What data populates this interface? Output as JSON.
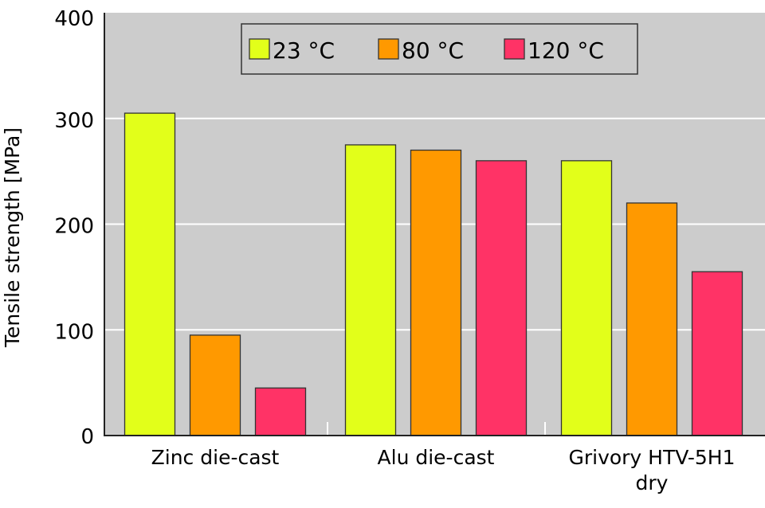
{
  "chart_data": {
    "type": "bar",
    "title": "",
    "xlabel": "",
    "ylabel": "Tensile strength  [MPa]",
    "ylim": [
      0,
      400
    ],
    "yticks": [
      0,
      100,
      200,
      300,
      400
    ],
    "grid": true,
    "legend_position": "top-right",
    "categories": [
      "Zinc die-cast",
      "Alu die-cast",
      "Grivory HTV-5H1 dry"
    ],
    "category_lines": [
      [
        "Zinc die-cast"
      ],
      [
        "Alu die-cast"
      ],
      [
        "Grivory HTV-5H1",
        "dry"
      ]
    ],
    "series": [
      {
        "name": "23 °C",
        "color": "#e2ff1a",
        "values": [
          305,
          275,
          260
        ]
      },
      {
        "name": "80 °C",
        "color": "#ff9900",
        "values": [
          95,
          270,
          220
        ]
      },
      {
        "name": "120 °C",
        "color": "#ff3366",
        "values": [
          45,
          260,
          155
        ]
      }
    ],
    "background_color": "#cccccc"
  }
}
